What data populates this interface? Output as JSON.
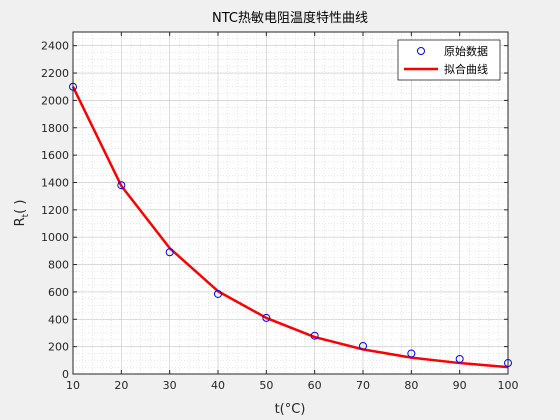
{
  "chart_data": {
    "type": "line",
    "title": "NTC热敏电阻温度特性曲线",
    "xlabel": "t(°C)",
    "ylabel": "R",
    "ylabel_sub": "t",
    "ylabel_unit": "( )",
    "xlim": [
      10,
      100
    ],
    "ylim": [
      0,
      2500
    ],
    "xticks": [
      10,
      20,
      30,
      40,
      50,
      60,
      70,
      80,
      90,
      100
    ],
    "yticks": [
      0,
      200,
      400,
      600,
      800,
      1000,
      1200,
      1400,
      1600,
      1800,
      2000,
      2200,
      2400
    ],
    "grid": true,
    "minor_grid": true,
    "legend_position": "top-right",
    "series": [
      {
        "name": "原始数据",
        "style": "markers",
        "marker": "circle",
        "color": "#0000ff",
        "x": [
          10,
          20,
          30,
          40,
          50,
          60,
          70,
          80,
          90,
          100
        ],
        "y": [
          2100,
          1380,
          890,
          585,
          410,
          280,
          205,
          150,
          110,
          80
        ]
      },
      {
        "name": "拟合曲线",
        "style": "line",
        "color": "#ff0000",
        "x": [
          10,
          20,
          30,
          40,
          50,
          60,
          70,
          80,
          90,
          100
        ],
        "y": [
          2100,
          1375,
          920,
          605,
          410,
          270,
          180,
          120,
          80,
          50
        ]
      }
    ]
  }
}
